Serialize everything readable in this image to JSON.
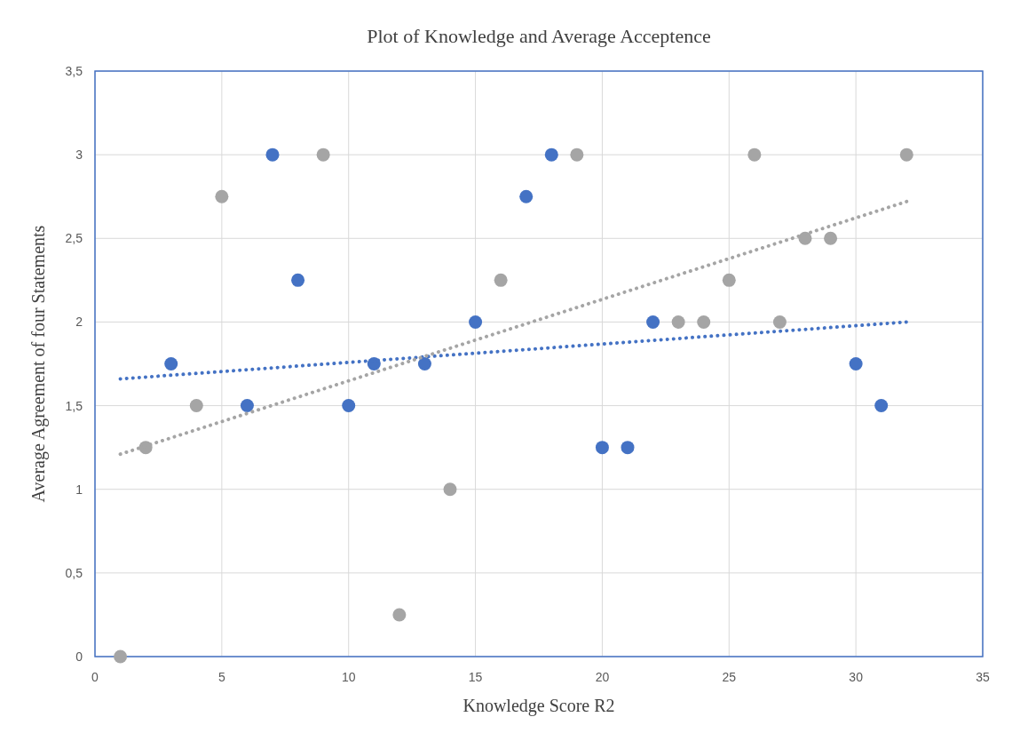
{
  "chart_data": {
    "type": "scatter",
    "title": "Plot of Knowledge and Average Acceptence",
    "xlabel": "Knowledge Score R2",
    "ylabel": "Average Agreement of four Statements",
    "xlim": [
      0,
      35
    ],
    "xticks": [
      0,
      5,
      10,
      15,
      20,
      25,
      30,
      35
    ],
    "ylim": [
      0,
      3.5
    ],
    "yticks": [
      0,
      {
        "value": 0.5,
        "label": "0,5"
      },
      1,
      {
        "value": 1.5,
        "label": "1,5"
      },
      2,
      {
        "value": 2.5,
        "label": "2,5"
      },
      3,
      {
        "value": 3.5,
        "label": "3,5"
      }
    ],
    "grid": true,
    "marker": "circle",
    "series": [
      {
        "color": "#4472c4",
        "x": [
          3,
          6,
          7,
          8,
          10,
          11,
          13,
          15,
          17,
          18,
          20,
          21,
          22,
          30,
          31
        ],
        "values": [
          1.75,
          1.5,
          3,
          2.25,
          1.5,
          1.75,
          1.75,
          2,
          2.75,
          3,
          1.25,
          1.25,
          2,
          1.75,
          1.5
        ]
      },
      {
        "color": "#a5a5a5",
        "x": [
          1,
          2,
          4,
          5,
          9,
          12,
          14,
          16,
          19,
          23,
          24,
          25,
          26,
          27,
          28,
          29,
          32
        ],
        "values": [
          0,
          1.25,
          1.5,
          2.75,
          3,
          0.25,
          1,
          2.25,
          3,
          2,
          2,
          2.25,
          3,
          2,
          2.5,
          2.5,
          3
        ]
      },
      {
        "type": "line",
        "line_style": "dotted",
        "marker": "none",
        "color": "#4472c4",
        "x": [
          1,
          32
        ],
        "values": [
          1.66,
          2.0
        ]
      },
      {
        "type": "line",
        "line_style": "dotted",
        "marker": "none",
        "color": "#a5a5a5",
        "x": [
          1,
          32
        ],
        "values": [
          1.21,
          2.72
        ]
      }
    ]
  }
}
